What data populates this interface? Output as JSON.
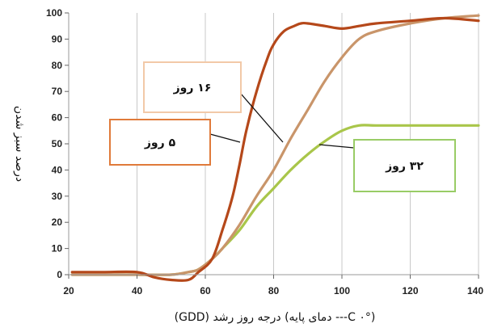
{
  "chart_data": {
    "type": "line",
    "title": "",
    "xlabel": "(°C ۰--- دمای پایه) درجه روز رشد (GDD)",
    "ylabel": "درصد سبز شدن",
    "xlim": [
      20,
      140
    ],
    "ylim": [
      0,
      100
    ],
    "xticks": [
      "20",
      "40",
      "60",
      "80",
      "100",
      "120",
      "140"
    ],
    "yticks": [
      "0",
      "10",
      "20",
      "30",
      "40",
      "50",
      "60",
      "70",
      "80",
      "90",
      "100"
    ],
    "grid": {
      "vertical": true,
      "horizontal": false
    },
    "series": [
      {
        "name": "۵ روز",
        "color": "#b5481a",
        "x": [
          21,
          30,
          40,
          45,
          50,
          55,
          58,
          62,
          65,
          68,
          70,
          72,
          75,
          78,
          80,
          83,
          86,
          88,
          90,
          95,
          100,
          105,
          110,
          120,
          130,
          140
        ],
        "y": [
          1,
          1,
          1,
          -1,
          -2,
          -2,
          1,
          6,
          17,
          30,
          42,
          55,
          70,
          82,
          88,
          93,
          95,
          96,
          96,
          95,
          94,
          95,
          96,
          97,
          98,
          97
        ]
      },
      {
        "name": "۱۶ روز",
        "color": "#c9956a",
        "x": [
          21,
          30,
          40,
          50,
          55,
          58,
          62,
          65,
          70,
          75,
          80,
          85,
          90,
          95,
          100,
          105,
          110,
          120,
          130,
          140
        ],
        "y": [
          0,
          0,
          0,
          0,
          1,
          2,
          6,
          10,
          19,
          30,
          40,
          52,
          63,
          74,
          83,
          90,
          93,
          96,
          98,
          99
        ]
      },
      {
        "name": "۳۲ روز",
        "color": "#a9c64a",
        "x": [
          21,
          30,
          40,
          50,
          55,
          58,
          62,
          65,
          70,
          75,
          80,
          85,
          90,
          95,
          100,
          105,
          110,
          120,
          130,
          140
        ],
        "y": [
          0,
          0,
          0,
          0,
          1,
          2,
          6,
          10,
          17,
          26,
          33,
          40,
          46,
          51,
          55,
          57,
          57,
          57,
          57,
          57
        ]
      }
    ],
    "annotations": [
      {
        "text": "۱۶ روز",
        "series": 1,
        "x": 83,
        "y": 50,
        "border": "#f2c9a8"
      },
      {
        "text": "۵ روز",
        "series": 0,
        "x": 72,
        "y": 50,
        "border": "#e07a3a"
      },
      {
        "text": "۳۲ روز",
        "series": 2,
        "x": 95,
        "y": 50,
        "border": "#99cc66"
      }
    ]
  }
}
